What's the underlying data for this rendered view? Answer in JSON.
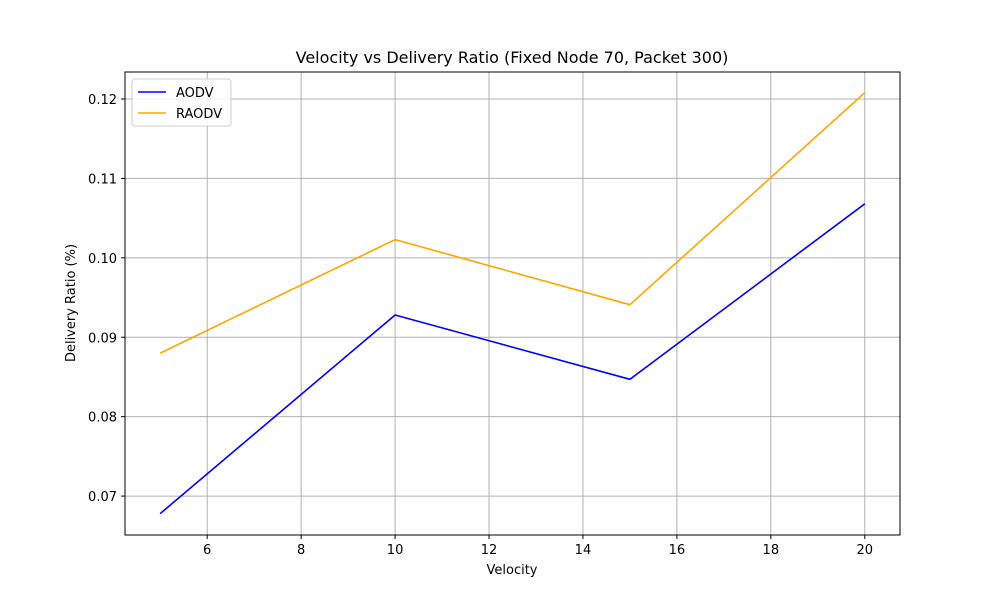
{
  "chart_data": {
    "type": "line",
    "title": "Velocity vs Delivery Ratio (Fixed Node 70, Packet 300)",
    "xlabel": "Velocity",
    "ylabel": "Delivery Ratio (%)",
    "x": [
      5,
      10,
      15,
      20
    ],
    "series": [
      {
        "name": "AODV",
        "color": "#0000ff",
        "values": [
          0.0678,
          0.0928,
          0.0847,
          0.1068
        ]
      },
      {
        "name": "RAODV",
        "color": "#ffa500",
        "values": [
          0.088,
          0.1023,
          0.0941,
          0.1208
        ]
      }
    ],
    "xlim": [
      4.25,
      20.75
    ],
    "ylim": [
      0.0651,
      0.1234
    ],
    "xticks": [
      6,
      8,
      10,
      12,
      14,
      16,
      18,
      20
    ],
    "xtick_labels": [
      "6",
      "8",
      "10",
      "12",
      "14",
      "16",
      "18",
      "20"
    ],
    "yticks": [
      0.07,
      0.08,
      0.09,
      0.1,
      0.11,
      0.12
    ],
    "ytick_labels": [
      "0.07",
      "0.08",
      "0.09",
      "0.10",
      "0.11",
      "0.12"
    ],
    "grid": true,
    "legend_position": "top-left"
  }
}
